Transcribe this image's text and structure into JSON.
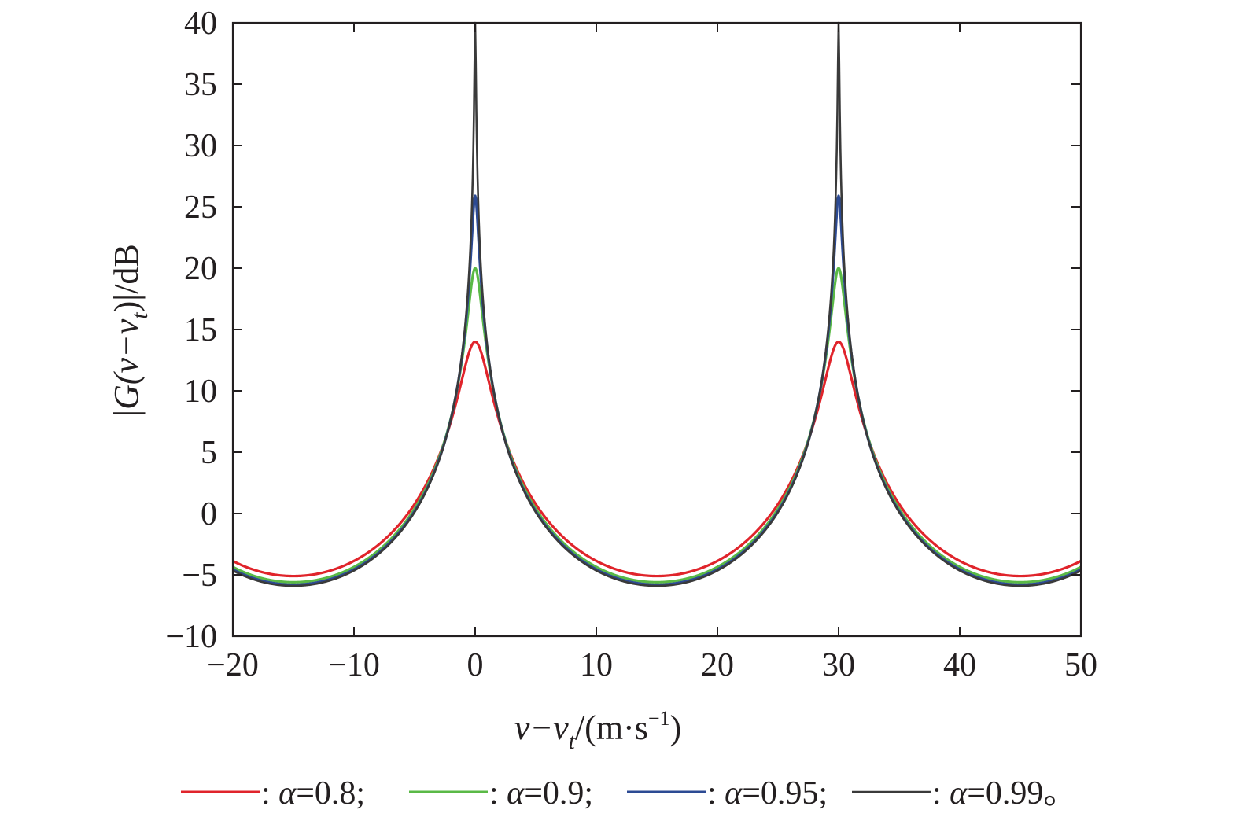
{
  "chart_data": {
    "type": "line",
    "title": "",
    "xlabel": {
      "base": "v−v",
      "sub": "t",
      "unit_open": "/(m·s",
      "sup": "−1",
      "unit_close": ")"
    },
    "ylabel": {
      "pre": "|",
      "g": "G",
      "mid": "(v−v",
      "sub": "t",
      "post": ")|/dB"
    },
    "xlim": [
      -20,
      50
    ],
    "ylim": [
      -10,
      40
    ],
    "xticks": [
      -20,
      -10,
      0,
      10,
      20,
      30,
      40,
      50
    ],
    "yticks": [
      -10,
      -5,
      0,
      5,
      10,
      15,
      20,
      25,
      30,
      35,
      40
    ],
    "xtick_labels": [
      "−20",
      "−10",
      "0",
      "10",
      "20",
      "30",
      "40",
      "50"
    ],
    "ytick_labels": [
      "−10",
      "−5",
      "0",
      "5",
      "10",
      "15",
      "20",
      "25",
      "30",
      "35",
      "40"
    ],
    "grid": false,
    "legend_placement": "bottom",
    "period": 30,
    "series": [
      {
        "legend_prefix": ": ",
        "symbol": "α",
        "legend_value": "=0.8;",
        "alpha": 0.8,
        "color": "#e0242b",
        "peak": 14.0,
        "min": -5.1
      },
      {
        "legend_prefix": ": ",
        "symbol": "α",
        "legend_value": "=0.9;",
        "alpha": 0.9,
        "color": "#5ab946",
        "peak": 20.0,
        "min": -5.6
      },
      {
        "legend_prefix": ": ",
        "symbol": "α",
        "legend_value": "=0.95;",
        "alpha": 0.95,
        "color": "#2c4a93",
        "peak": 25.9,
        "min": -5.8
      },
      {
        "legend_prefix": ": ",
        "symbol": "α",
        "legend_value": "=0.99。",
        "alpha": 0.99,
        "color": "#3a3a3a",
        "peak": 40.0,
        "min": -5.9
      }
    ]
  }
}
